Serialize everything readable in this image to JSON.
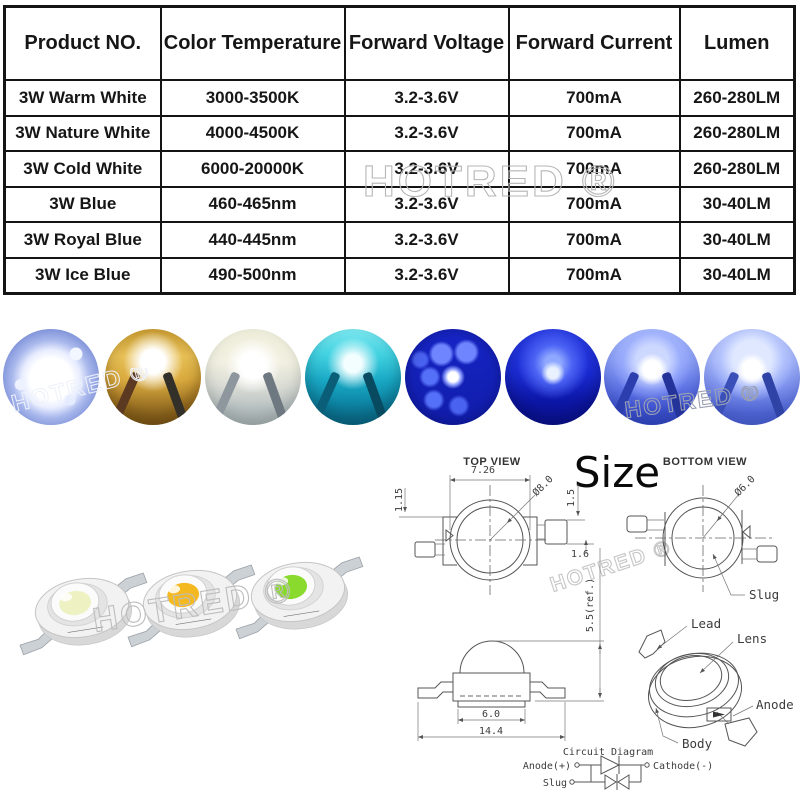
{
  "watermark": {
    "text": "HOTRED ®"
  },
  "table": {
    "headers": [
      "Product NO.",
      "Color Temperature",
      "Forward Voltage",
      "Forward Current",
      "Lumen"
    ],
    "rows": [
      [
        "3W Warm White",
        "3000-3500K",
        "3.2-3.6V",
        "700mA",
        "260-280LM"
      ],
      [
        "3W Nature White",
        "4000-4500K",
        "3.2-3.6V",
        "700mA",
        "260-280LM"
      ],
      [
        "3W Cold White",
        "6000-20000K",
        "3.2-3.6V",
        "700mA",
        "260-280LM"
      ],
      [
        "3W Blue",
        "460-465nm",
        "3.2-3.6V",
        "700mA",
        "30-40LM"
      ],
      [
        "3W Royal Blue",
        "440-445nm",
        "3.2-3.6V",
        "700mA",
        "30-40LM"
      ],
      [
        "3W Ice Blue",
        "490-500nm",
        "3.2-3.6V",
        "700mA",
        "30-40LM"
      ]
    ]
  },
  "photos": {
    "items": [
      {
        "id": "cold-white-star-pcb",
        "color": "#8ca0e0"
      },
      {
        "id": "warm-white",
        "color": "#e2b04a"
      },
      {
        "id": "nature-white",
        "color": "#dfe0cd"
      },
      {
        "id": "cyan-ice",
        "color": "#28b9d2"
      },
      {
        "id": "blue-chip-array",
        "color": "#1726c8"
      },
      {
        "id": "royal-blue",
        "color": "#2134e2"
      },
      {
        "id": "blue-glow",
        "color": "#8ea2f8"
      },
      {
        "id": "ice-blue-glow",
        "color": "#a9bafc"
      }
    ]
  },
  "emitters": {
    "chips": [
      {
        "id": "pale-white-chip",
        "color": "#eef2c2"
      },
      {
        "id": "amber-chip",
        "color": "#f4b820"
      },
      {
        "id": "green-chip",
        "color": "#8ada2e"
      }
    ]
  },
  "size_section": {
    "title": "Size",
    "top_view_label": "TOP VIEW",
    "bottom_view_label": "BOTTOM VIEW",
    "dimensions": {
      "body_width": "7.26",
      "lens_diameter": "Ø8.0",
      "edge_offset": "1.15",
      "lead_thickness": "1.5",
      "lead_step": "1.6",
      "slug_diameter": "Ø6.0",
      "base_width": "6.0",
      "total_width": "14.4",
      "height_ref": "5.5(ref.)"
    },
    "labels": {
      "slug": "Slug",
      "lead": "Lead",
      "lens": "Lens",
      "anode": "Anode",
      "body": "Body"
    },
    "circuit": {
      "title": "Circuit Diagram",
      "anode": "Anode(+)",
      "cathode": "Cathode(-)",
      "slug": "Slug"
    }
  }
}
